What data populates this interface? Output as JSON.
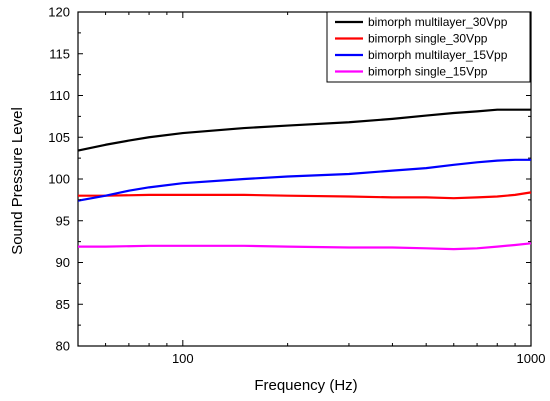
{
  "chart_data": {
    "type": "line",
    "xlabel": "Frequency (Hz)",
    "ylabel": "Sound Pressure Level",
    "xscale": "log",
    "xlim": [
      50,
      1000
    ],
    "ylim": [
      80,
      120
    ],
    "x_ticks": [
      100,
      1000
    ],
    "x_tick_labels": [
      "100",
      "1000"
    ],
    "y_ticks": [
      80,
      85,
      90,
      95,
      100,
      105,
      110,
      115,
      120
    ],
    "y_tick_labels": [
      "80",
      "85",
      "90",
      "95",
      "100",
      "105",
      "110",
      "115",
      "120"
    ],
    "grid": false,
    "legend_position": "top-right",
    "series": [
      {
        "name": "bimorph multilayer_30Vpp",
        "color": "#000000",
        "x": [
          50,
          60,
          70,
          80,
          100,
          150,
          200,
          300,
          400,
          500,
          600,
          700,
          800,
          900,
          1000
        ],
        "y": [
          103.4,
          104.1,
          104.6,
          105.0,
          105.5,
          106.1,
          106.4,
          106.8,
          107.2,
          107.6,
          107.9,
          108.1,
          108.3,
          108.3,
          108.3
        ]
      },
      {
        "name": "bimorph single_30Vpp",
        "color": "#ff0000",
        "x": [
          50,
          60,
          80,
          100,
          150,
          200,
          300,
          400,
          500,
          600,
          700,
          800,
          900,
          1000
        ],
        "y": [
          98.0,
          98.0,
          98.1,
          98.1,
          98.1,
          98.0,
          97.9,
          97.8,
          97.8,
          97.7,
          97.8,
          97.9,
          98.1,
          98.4
        ]
      },
      {
        "name": "bimorph multilayer_15Vpp",
        "color": "#0000ff",
        "x": [
          50,
          60,
          70,
          80,
          100,
          150,
          200,
          300,
          400,
          500,
          600,
          700,
          800,
          900,
          1000
        ],
        "y": [
          97.4,
          98.0,
          98.6,
          99.0,
          99.5,
          100.0,
          100.3,
          100.6,
          101.0,
          101.3,
          101.7,
          102.0,
          102.2,
          102.3,
          102.3
        ]
      },
      {
        "name": "bimorph single_15Vpp",
        "color": "#ff00ff",
        "x": [
          50,
          60,
          80,
          100,
          150,
          200,
          300,
          400,
          500,
          600,
          700,
          800,
          900,
          1000
        ],
        "y": [
          91.9,
          91.9,
          92.0,
          92.0,
          92.0,
          91.9,
          91.8,
          91.8,
          91.7,
          91.6,
          91.7,
          91.9,
          92.1,
          92.3
        ]
      }
    ]
  }
}
